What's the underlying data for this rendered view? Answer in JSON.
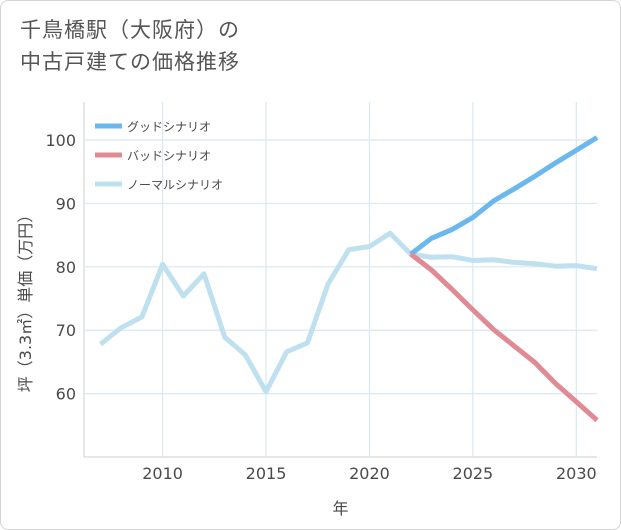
{
  "title": {
    "line1": "千鳥橋駅（大阪府）の",
    "line2": "中古戸建ての価格推移"
  },
  "chart_data": {
    "type": "line",
    "xlabel": "年",
    "ylabel": "坪（3.3㎡）単価（万円）",
    "xlim": [
      2006.2,
      2031
    ],
    "ylim": [
      50,
      106
    ],
    "x_ticks": [
      2010,
      2015,
      2020,
      2025,
      2030
    ],
    "y_ticks": [
      60,
      70,
      80,
      90,
      100
    ],
    "grid": true,
    "legend_position": "top-left",
    "series": [
      {
        "name": "グッドシナリオ",
        "color": "#6bb8ee",
        "x": [
          2022,
          2023,
          2024,
          2025,
          2026,
          2027,
          2028,
          2029,
          2030,
          2031
        ],
        "values": [
          82.0,
          84.5,
          85.9,
          87.8,
          90.4,
          92.3,
          94.3,
          96.4,
          98.4,
          100.4
        ]
      },
      {
        "name": "バッドシナリオ",
        "color": "#e08a94",
        "x": [
          2022,
          2023,
          2024,
          2025,
          2026,
          2027,
          2028,
          2029,
          2030,
          2031
        ],
        "values": [
          82.0,
          79.5,
          76.4,
          73.2,
          70.1,
          67.5,
          64.9,
          61.6,
          58.7,
          55.8
        ]
      },
      {
        "name": "ノーマルシナリオ",
        "color": "#bfe0ee",
        "x": [
          2007,
          2008,
          2009,
          2010,
          2011,
          2012,
          2013,
          2014,
          2015,
          2016,
          2017,
          2018,
          2019,
          2020,
          2021,
          2022,
          2023,
          2024,
          2025,
          2026,
          2027,
          2028,
          2029,
          2030,
          2031
        ],
        "values": [
          67.8,
          70.4,
          72.1,
          80.4,
          75.4,
          78.9,
          68.9,
          66.1,
          60.3,
          66.6,
          68.0,
          77.3,
          82.7,
          83.2,
          85.3,
          82.0,
          81.5,
          81.6,
          81.0,
          81.1,
          80.7,
          80.5,
          80.1,
          80.2,
          79.7
        ]
      }
    ]
  }
}
